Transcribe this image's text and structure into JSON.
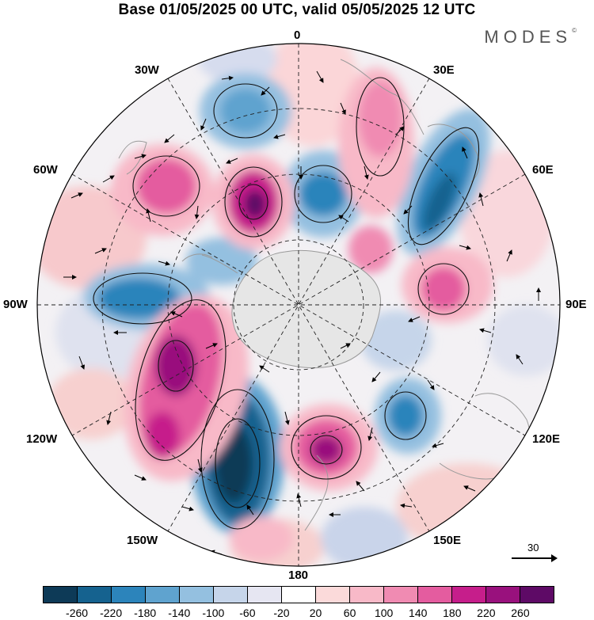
{
  "title": "Base 01/05/2025 00 UTC, valid 05/05/2025 12 UTC",
  "brand": "MODES",
  "brand_mark": "©",
  "longitude_labels": [
    "0",
    "30E",
    "60E",
    "90E",
    "120E",
    "150E",
    "180",
    "150W",
    "120W",
    "90W",
    "60W",
    "30W"
  ],
  "reference_vector": {
    "label": "30"
  },
  "colorbar": {
    "colors": [
      "#0d3a57",
      "#15628f",
      "#2c84bb",
      "#5fa3cf",
      "#94c0e0",
      "#c6d5ea",
      "#e6e6f2",
      "#ffffff",
      "#fbdada",
      "#f8b9c8",
      "#f08bb2",
      "#e45c9f",
      "#c61e8b",
      "#99117d",
      "#5e0a66"
    ],
    "tick_labels": [
      "-260",
      "-220",
      "-180",
      "-140",
      "-100",
      "-60",
      "-20",
      "20",
      "60",
      "100",
      "140",
      "180",
      "220",
      "260"
    ]
  },
  "map": {
    "projection": "south-polar-stereographic",
    "land_color": "#e6e6e6",
    "graticule": "dashed"
  }
}
